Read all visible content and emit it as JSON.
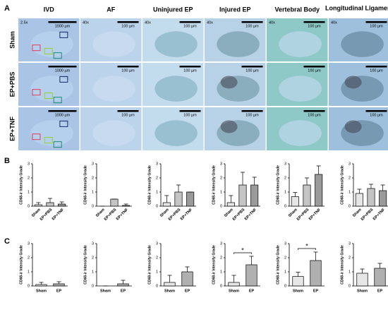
{
  "panel_labels": [
    "A",
    "B",
    "C"
  ],
  "images": {
    "columns": [
      "IVD",
      "AF",
      "Uninjured EP",
      "Injured EP",
      "Vertebral Body",
      "Longitudinal Ligament"
    ],
    "rows": [
      "Sham",
      "EP+PBS",
      "EP+TNF"
    ],
    "magnifications": [
      "2.5x",
      "40x",
      "40x",
      "40x",
      "40x",
      "40x"
    ],
    "scale_bars": [
      "1000 µm",
      "100 µm",
      "100 µm",
      "100 µm",
      "100 µm",
      "100 µm"
    ]
  },
  "chart_data": [
    {
      "type": "bar",
      "y_label": "CD68-ir Intensity Grade",
      "categories": [
        "Sham",
        "EP+PBS",
        "EP+TNF"
      ],
      "values": [
        0.1,
        0.25,
        0.15
      ],
      "errors": [
        0.15,
        0.3,
        0.15
      ],
      "colors": [
        "#e6e6e6",
        "#c4c4c4",
        "#9a9a9a"
      ],
      "ylim": [
        0,
        3
      ],
      "yticks": [
        0,
        1,
        2,
        3
      ]
    },
    {
      "type": "bar",
      "y_label": "CD68-ir Intensity Grade",
      "categories": [
        "Sham",
        "EP+PBS",
        "EP+TNF"
      ],
      "values": [
        0,
        0.5,
        0.05
      ],
      "errors": [
        0,
        0,
        0.1
      ],
      "colors": [
        "#e6e6e6",
        "#c4c4c4",
        "#9a9a9a"
      ],
      "ylim": [
        0,
        3
      ],
      "yticks": [
        0,
        1,
        2,
        3
      ]
    },
    {
      "type": "bar",
      "y_label": "CD68-ir Intensity Grade",
      "categories": [
        "Sham",
        "EP+PBS",
        "EP+TNF"
      ],
      "values": [
        0.25,
        1.0,
        1.0
      ],
      "errors": [
        0.5,
        0.5,
        0
      ],
      "colors": [
        "#e6e6e6",
        "#c4c4c4",
        "#9a9a9a"
      ],
      "ylim": [
        0,
        3
      ],
      "yticks": [
        0,
        1,
        2,
        3
      ]
    },
    {
      "type": "bar",
      "y_label": "CD68-ir Intensity Grade",
      "categories": [
        "Sham",
        "EP+PBS",
        "EP+TNF"
      ],
      "values": [
        0.25,
        1.5,
        1.5
      ],
      "errors": [
        0.5,
        0.9,
        0.55
      ],
      "colors": [
        "#e6e6e6",
        "#c4c4c4",
        "#9a9a9a"
      ],
      "ylim": [
        0,
        3
      ],
      "yticks": [
        0,
        1,
        2,
        3
      ]
    },
    {
      "type": "bar",
      "y_label": "CD68-ir Intensity Grade",
      "categories": [
        "Sham",
        "EP+PBS",
        "EP+TNF"
      ],
      "values": [
        0.67,
        1.5,
        2.25
      ],
      "errors": [
        0.3,
        0.5,
        0.6
      ],
      "colors": [
        "#e6e6e6",
        "#c4c4c4",
        "#9a9a9a"
      ],
      "ylim": [
        0,
        3
      ],
      "yticks": [
        0,
        1,
        2,
        3
      ]
    },
    {
      "type": "bar",
      "y_label": "CD68-ir Intensity Grade",
      "categories": [
        "Sham",
        "EP+PBS",
        "EP+TNF"
      ],
      "values": [
        0.9,
        1.25,
        1.1
      ],
      "errors": [
        0.3,
        0.3,
        0.4
      ],
      "colors": [
        "#e6e6e6",
        "#c4c4c4",
        "#9a9a9a"
      ],
      "ylim": [
        0,
        3
      ],
      "yticks": [
        0,
        1,
        2,
        3
      ]
    },
    {
      "type": "bar",
      "y_label": "CD68-ir Intensity Grade",
      "categories": [
        "Sham",
        "EP"
      ],
      "values": [
        0.1,
        0.15
      ],
      "errors": [
        0.15,
        0.15
      ],
      "colors": [
        "#e6e6e6",
        "#b0b0b0"
      ],
      "ylim": [
        0,
        3
      ],
      "yticks": [
        0,
        1,
        2,
        3
      ]
    },
    {
      "type": "bar",
      "y_label": "CD68-ir Intensity Grade",
      "categories": [
        "Sham",
        "EP"
      ],
      "values": [
        0,
        0.15
      ],
      "errors": [
        0,
        0.25
      ],
      "colors": [
        "#e6e6e6",
        "#b0b0b0"
      ],
      "ylim": [
        0,
        3
      ],
      "yticks": [
        0,
        1,
        2,
        3
      ]
    },
    {
      "type": "bar",
      "y_label": "CD68-ir Intensity Grade",
      "categories": [
        "Sham",
        "EP"
      ],
      "values": [
        0.25,
        1.0
      ],
      "errors": [
        0.5,
        0.35
      ],
      "colors": [
        "#e6e6e6",
        "#b0b0b0"
      ],
      "ylim": [
        0,
        3
      ],
      "yticks": [
        0,
        1,
        2,
        3
      ]
    },
    {
      "type": "bar",
      "y_label": "CD68-ir Intensity Grade",
      "categories": [
        "Sham",
        "EP"
      ],
      "values": [
        0.25,
        1.5
      ],
      "errors": [
        0.5,
        0.6
      ],
      "colors": [
        "#e6e6e6",
        "#b0b0b0"
      ],
      "ylim": [
        0,
        3
      ],
      "yticks": [
        0,
        1,
        2,
        3
      ],
      "significance": "*"
    },
    {
      "type": "bar",
      "y_label": "CD68-ir Intensity Grade",
      "categories": [
        "Sham",
        "EP"
      ],
      "values": [
        0.67,
        1.8
      ],
      "errors": [
        0.3,
        0.6
      ],
      "colors": [
        "#e6e6e6",
        "#b0b0b0"
      ],
      "ylim": [
        0,
        3
      ],
      "yticks": [
        0,
        1,
        2,
        3
      ],
      "significance": "*"
    },
    {
      "type": "bar",
      "y_label": "CD68-ir Intensity Grade",
      "categories": [
        "Sham",
        "EP"
      ],
      "values": [
        0.9,
        1.25
      ],
      "errors": [
        0.3,
        0.35
      ],
      "colors": [
        "#e6e6e6",
        "#b0b0b0"
      ],
      "ylim": [
        0,
        3
      ],
      "yticks": [
        0,
        1,
        2,
        3
      ]
    }
  ]
}
